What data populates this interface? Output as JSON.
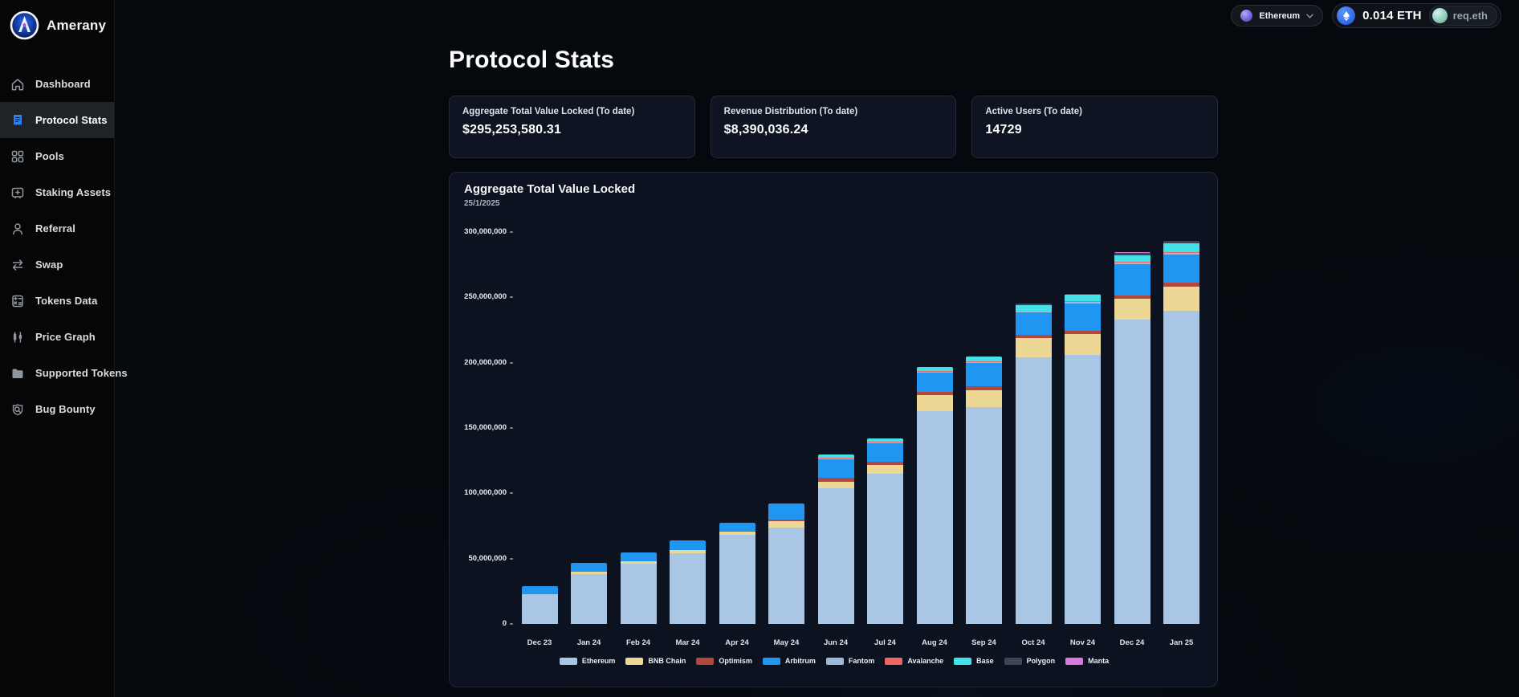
{
  "brand": {
    "name": "Amerany"
  },
  "sidebar": {
    "items": [
      {
        "label": "Dashboard",
        "icon": "home"
      },
      {
        "label": "Protocol Stats",
        "icon": "receipt",
        "selected": true
      },
      {
        "label": "Pools",
        "icon": "grid"
      },
      {
        "label": "Staking Assets",
        "icon": "stake-box"
      },
      {
        "label": "Referral",
        "icon": "person"
      },
      {
        "label": "Swap",
        "icon": "swap-arrows"
      },
      {
        "label": "Tokens Data",
        "icon": "calculator"
      },
      {
        "label": "Price Graph",
        "icon": "candlestick"
      },
      {
        "label": "Supported Tokens",
        "icon": "folder"
      },
      {
        "label": "Bug Bounty",
        "icon": "magnifier-shield"
      }
    ]
  },
  "topbar": {
    "network": {
      "label": "Ethereum"
    },
    "wallet": {
      "balance": "0.014 ETH",
      "ens": "req.eth"
    }
  },
  "page": {
    "title": "Protocol Stats"
  },
  "stats": {
    "cards": [
      {
        "label": "Aggregate Total Value Locked (To date)",
        "value": "$295,253,580.31"
      },
      {
        "label": "Revenue Distribution (To date)",
        "value": "$8,390,036.24"
      },
      {
        "label": "Active Users (To date)",
        "value": "14729"
      }
    ]
  },
  "chart": {
    "title": "Aggregate Total Value Locked",
    "date": "25/1/2025"
  },
  "chart_data": {
    "type": "bar",
    "stacked": true,
    "title": "Aggregate Total Value Locked",
    "subtitle": "25/1/2025",
    "unit": "USD",
    "grid": false,
    "legend_position": "bottom",
    "ylim": [
      0,
      300000000
    ],
    "ytick_values": [
      0,
      50000000,
      100000000,
      150000000,
      200000000,
      250000000,
      300000000
    ],
    "ytick_labels": [
      "0",
      "50,000,000",
      "100,000,000",
      "150,000,000",
      "200,000,000",
      "250,000,000",
      "300,000,000"
    ],
    "categories": [
      "Dec 23",
      "Jan 24",
      "Feb 24",
      "Mar 24",
      "Apr 24",
      "May 24",
      "Jun 24",
      "Jul 24",
      "Aug 24",
      "Sep 24",
      "Oct 24",
      "Nov 24",
      "Dec 24",
      "Jan 25"
    ],
    "series": [
      {
        "name": "Ethereum",
        "color": "#a9c6e4",
        "values": [
          23000000,
          38000000,
          46000000,
          54000000,
          68000000,
          74000000,
          104000000,
          115000000,
          163000000,
          166000000,
          204000000,
          206000000,
          233000000,
          240000000
        ]
      },
      {
        "name": "BNB Chain",
        "color": "#ecd795",
        "values": [
          0,
          2000000,
          2000000,
          2500000,
          2500000,
          4500000,
          5000000,
          7000000,
          12000000,
          13000000,
          15000000,
          16000000,
          16000000,
          18000000
        ]
      },
      {
        "name": "Optimism",
        "color": "#b3473e",
        "values": [
          0,
          0,
          0,
          0,
          1000000,
          1500000,
          3000000,
          2500000,
          2500000,
          3000000,
          2500000,
          2500000,
          2500000,
          3000000
        ]
      },
      {
        "name": "Arbitrum",
        "color": "#1e96f2",
        "values": [
          6000000,
          6500000,
          6500000,
          7500000,
          6000000,
          12000000,
          14000000,
          14000000,
          15000000,
          18000000,
          17000000,
          21000000,
          24000000,
          22000000
        ]
      },
      {
        "name": "Fantom",
        "color": "#9db9d9",
        "values": [
          0,
          0,
          0,
          0,
          0,
          0,
          500000,
          500000,
          500000,
          500000,
          1000000,
          1000000,
          1000000,
          1000000
        ]
      },
      {
        "name": "Avalanche",
        "color": "#ef6661",
        "values": [
          0,
          0,
          0,
          0,
          0,
          0,
          500000,
          500000,
          500000,
          500000,
          500000,
          500000,
          500000,
          500000
        ]
      },
      {
        "name": "Base",
        "color": "#41e2ea",
        "values": [
          0,
          0,
          0,
          0,
          0,
          0,
          2500000,
          2500000,
          3000000,
          3500000,
          4000000,
          5000000,
          5000000,
          7000000
        ]
      },
      {
        "name": "Polygon",
        "color": "#3a4556",
        "values": [
          0,
          0,
          0,
          0,
          0,
          0,
          0,
          0,
          0,
          0,
          1500000,
          500000,
          2000000,
          1500000
        ]
      },
      {
        "name": "Manta",
        "color": "#d678dc",
        "values": [
          0,
          0,
          0,
          0,
          0,
          0,
          0,
          0,
          0,
          0,
          0,
          0,
          500000,
          500000
        ]
      }
    ]
  }
}
